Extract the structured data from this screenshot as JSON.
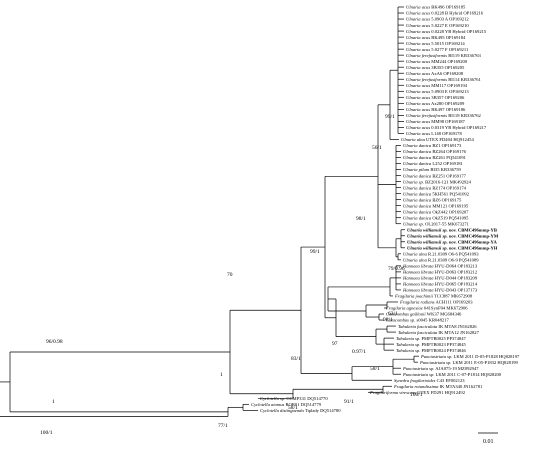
{
  "scale_bar": {
    "label": "0.01"
  },
  "tips": [
    [
      "Ulnaria acus",
      "BK496 OP169185"
    ],
    [
      "Ulnaria acus",
      "0.0228 B Hybrid OP169216"
    ],
    [
      "Ulnaria acus",
      "5.0903 A OP169212"
    ],
    [
      "Ulnaria acus",
      "5.0227 E OP169210"
    ],
    [
      "Ulnaria acus",
      "0.0228 YB Hybrid OP169215"
    ],
    [
      "Ulnaria acus",
      "BK495 OP169184"
    ],
    [
      "Ulnaria acus",
      "5.5015 OP169214"
    ],
    [
      "Ulnaria acus",
      "5.0277 F OP169211"
    ],
    [
      "Ulnaria ferefusiformis",
      "BI119 KR336763"
    ],
    [
      "Ulnaria acus",
      "MM244 OP169200"
    ],
    [
      "Ulnaria acus",
      "3B355 OP169205"
    ],
    [
      "Ulnaria acus",
      "AxA6 OP169208"
    ],
    [
      "Ulnaria ferefusiformis",
      "BI114 KR336761"
    ],
    [
      "Ulnaria acus",
      "MM117 OP169194"
    ],
    [
      "Ulnaria acus",
      "5.0903 E OP169213"
    ],
    [
      "Ulnaria acus",
      "3B357 OP169206"
    ],
    [
      "Ulnaria acus",
      "Ax280 OP169209"
    ],
    [
      "Ulnaria acus",
      "BK497 OP169186"
    ],
    [
      "Ulnaria ferefusiformis",
      "BI118 KR336762"
    ],
    [
      "Ulnaria acus",
      "MM98 OP169187"
    ],
    [
      "Ulnaria acus",
      "0.0319 YB Hybrid OP169217"
    ],
    [
      "Ulnaria acus",
      "L148 OP169178"
    ],
    [
      "Ulnaria ulna",
      "UTEX FD404 HQ912454"
    ],
    [
      "Ulnaria danica",
      "BZ1 OP169173"
    ],
    [
      "Ulnaria danica",
      "BZ264 OP169176"
    ],
    [
      "Ulnaria danica",
      "BZ261 PQ541091"
    ],
    [
      "Ulnaria danica",
      "L252 OP169181"
    ],
    [
      "Ulnaria pilum",
      "BI35 KR336759"
    ],
    [
      "Ulnaria danica",
      "BZ251 OP169177"
    ],
    [
      "Ulnaria sp.",
      "BZ2016-121 MK492924"
    ],
    [
      "Ulnaria danica",
      "BZ174 OP169174"
    ],
    [
      "Ulnaria danica",
      "5KH561 PQ541092"
    ],
    [
      "Ulnaria danica",
      "BZ6 OP169175"
    ],
    [
      "Ulnaria danica",
      "MM121 OP169195"
    ],
    [
      "Ulnaria danica",
      "OkZ442 OP169207"
    ],
    [
      "Ulnaria danica",
      "OkZ519 PQ541095"
    ],
    [
      "Ulnaria sp.",
      "OL2017-55 MK673271"
    ],
    [
      "Ulnaria williamsii sp. nov.",
      "CBMC496mmp-YB"
    ],
    [
      "Ulnaria williamsii sp. nov.",
      "CBMC496mmp-YM"
    ],
    [
      "Ulnaria williamsii sp. nov.",
      "CBMC496mmp-YA"
    ],
    [
      "Ulnaria williamsii sp. nov.",
      "CBMC496mmp-YH"
    ],
    [
      "Ulnaria ulna",
      "R.21.0309 O6-6 PQ541093"
    ],
    [
      "Ulnaria ulna",
      "R.21.0309 O6-9 PQ541089"
    ],
    [
      "Hannaea librata",
      "HYU-D064 OP183213"
    ],
    [
      "Hannaea librata",
      "HYU-D063 OP183212"
    ],
    [
      "Hannaea librata",
      "HYU-D044 OP183209"
    ],
    [
      "Hannaea librata",
      "HYU-D065 OP183214"
    ],
    [
      "Hannaea librata",
      "HYU-D043 OP137173"
    ],
    [
      "Fragilaria joachimii",
      "TCC887 MK672908"
    ],
    [
      "Fragilaria radians",
      "ACH111 OP169203"
    ],
    [
      "Fragilaria agnesiae",
      "041SynF04 MK672906"
    ],
    [
      "Catacombas gaillonii",
      "WK37 MG684346"
    ],
    [
      "Catacombas sp.",
      "s0045 KR048217"
    ],
    [
      "Tabularia fasciculata",
      "IK MTA8 JN162826"
    ],
    [
      "Tabularia fasciculata",
      "IK MTA12 JN162827"
    ],
    [
      "Tabularia sp.",
      "PMFTB0025 PP374847"
    ],
    [
      "Tabularia sp.",
      "PMFTB0023 PP374845"
    ],
    [
      "Tabularia sp.",
      "PMFTB0024 PP374846"
    ],
    [
      "Punctastriata sp.",
      "LKM 2011 D-05-P1828 HQ828197"
    ],
    [
      "Punctastriata sp.",
      "LKM 2011 E-05-P1832 HQ828199"
    ],
    [
      "Punctastriata sp.",
      "AJA075-19 MZ092947"
    ],
    [
      "Punctastriata sp.",
      "LKM 2011 C-07-P1814 HQ828200"
    ],
    [
      "Synedra fragilarioides",
      "C43 EF002123"
    ],
    [
      "Fragilaria rotundissima",
      "IK MTA340 JN162781"
    ],
    [
      "Fragilariforma virescens",
      "UTEX FD291 HQ912492"
    ],
    [
      "Cyclotella sp.",
      "CCMP331 DQ514770"
    ],
    [
      "Cyclotella atomus",
      "ROR01 DQ514779"
    ],
    [
      "Cyclotella distinguenda",
      "Tiplady DQ514780"
    ]
  ],
  "supports": [
    "99/1",
    "56/1",
    "98/1",
    "99/1",
    "79/0.96",
    "70",
    "63/1",
    "98/1",
    "0.97/1",
    "97",
    "83/1",
    "58/1",
    "1",
    "96/0.98",
    "100/1",
    "91/1",
    "58/1",
    "1",
    "77/1",
    "100/1"
  ]
}
